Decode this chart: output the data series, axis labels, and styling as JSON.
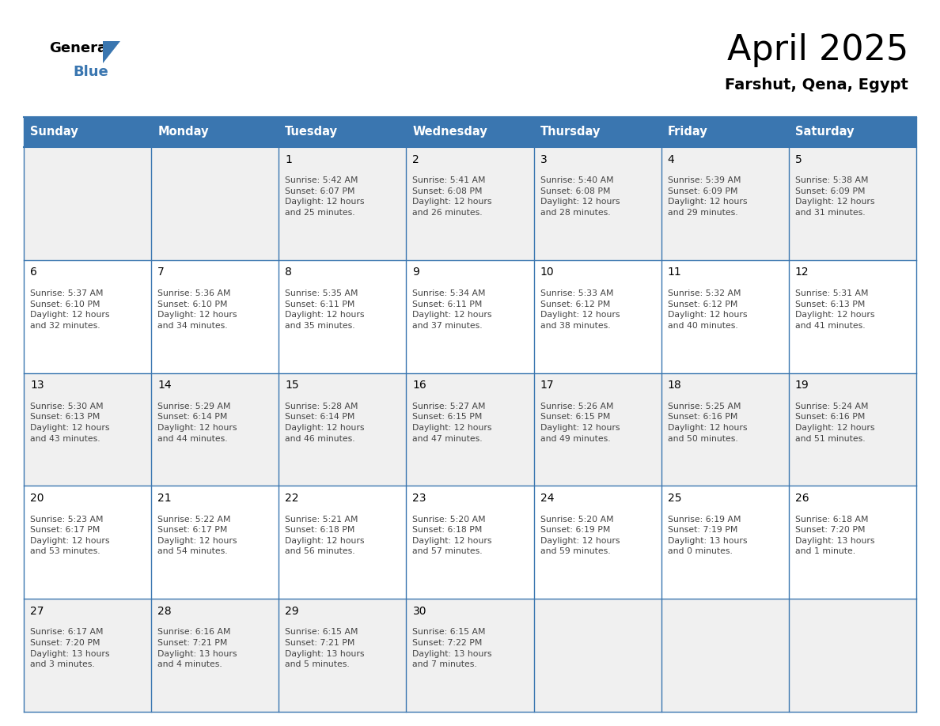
{
  "title": "April 2025",
  "subtitle": "Farshut, Qena, Egypt",
  "header_bg_color": "#3a76b0",
  "header_text_color": "#ffffff",
  "cell_bg_odd": "#f0f0f0",
  "cell_bg_even": "#ffffff",
  "day_headers": [
    "Sunday",
    "Monday",
    "Tuesday",
    "Wednesday",
    "Thursday",
    "Friday",
    "Saturday"
  ],
  "calendar_data": [
    [
      {
        "day": null,
        "text": ""
      },
      {
        "day": null,
        "text": ""
      },
      {
        "day": 1,
        "text": "Sunrise: 5:42 AM\nSunset: 6:07 PM\nDaylight: 12 hours\nand 25 minutes."
      },
      {
        "day": 2,
        "text": "Sunrise: 5:41 AM\nSunset: 6:08 PM\nDaylight: 12 hours\nand 26 minutes."
      },
      {
        "day": 3,
        "text": "Sunrise: 5:40 AM\nSunset: 6:08 PM\nDaylight: 12 hours\nand 28 minutes."
      },
      {
        "day": 4,
        "text": "Sunrise: 5:39 AM\nSunset: 6:09 PM\nDaylight: 12 hours\nand 29 minutes."
      },
      {
        "day": 5,
        "text": "Sunrise: 5:38 AM\nSunset: 6:09 PM\nDaylight: 12 hours\nand 31 minutes."
      }
    ],
    [
      {
        "day": 6,
        "text": "Sunrise: 5:37 AM\nSunset: 6:10 PM\nDaylight: 12 hours\nand 32 minutes."
      },
      {
        "day": 7,
        "text": "Sunrise: 5:36 AM\nSunset: 6:10 PM\nDaylight: 12 hours\nand 34 minutes."
      },
      {
        "day": 8,
        "text": "Sunrise: 5:35 AM\nSunset: 6:11 PM\nDaylight: 12 hours\nand 35 minutes."
      },
      {
        "day": 9,
        "text": "Sunrise: 5:34 AM\nSunset: 6:11 PM\nDaylight: 12 hours\nand 37 minutes."
      },
      {
        "day": 10,
        "text": "Sunrise: 5:33 AM\nSunset: 6:12 PM\nDaylight: 12 hours\nand 38 minutes."
      },
      {
        "day": 11,
        "text": "Sunrise: 5:32 AM\nSunset: 6:12 PM\nDaylight: 12 hours\nand 40 minutes."
      },
      {
        "day": 12,
        "text": "Sunrise: 5:31 AM\nSunset: 6:13 PM\nDaylight: 12 hours\nand 41 minutes."
      }
    ],
    [
      {
        "day": 13,
        "text": "Sunrise: 5:30 AM\nSunset: 6:13 PM\nDaylight: 12 hours\nand 43 minutes."
      },
      {
        "day": 14,
        "text": "Sunrise: 5:29 AM\nSunset: 6:14 PM\nDaylight: 12 hours\nand 44 minutes."
      },
      {
        "day": 15,
        "text": "Sunrise: 5:28 AM\nSunset: 6:14 PM\nDaylight: 12 hours\nand 46 minutes."
      },
      {
        "day": 16,
        "text": "Sunrise: 5:27 AM\nSunset: 6:15 PM\nDaylight: 12 hours\nand 47 minutes."
      },
      {
        "day": 17,
        "text": "Sunrise: 5:26 AM\nSunset: 6:15 PM\nDaylight: 12 hours\nand 49 minutes."
      },
      {
        "day": 18,
        "text": "Sunrise: 5:25 AM\nSunset: 6:16 PM\nDaylight: 12 hours\nand 50 minutes."
      },
      {
        "day": 19,
        "text": "Sunrise: 5:24 AM\nSunset: 6:16 PM\nDaylight: 12 hours\nand 51 minutes."
      }
    ],
    [
      {
        "day": 20,
        "text": "Sunrise: 5:23 AM\nSunset: 6:17 PM\nDaylight: 12 hours\nand 53 minutes."
      },
      {
        "day": 21,
        "text": "Sunrise: 5:22 AM\nSunset: 6:17 PM\nDaylight: 12 hours\nand 54 minutes."
      },
      {
        "day": 22,
        "text": "Sunrise: 5:21 AM\nSunset: 6:18 PM\nDaylight: 12 hours\nand 56 minutes."
      },
      {
        "day": 23,
        "text": "Sunrise: 5:20 AM\nSunset: 6:18 PM\nDaylight: 12 hours\nand 57 minutes."
      },
      {
        "day": 24,
        "text": "Sunrise: 5:20 AM\nSunset: 6:19 PM\nDaylight: 12 hours\nand 59 minutes."
      },
      {
        "day": 25,
        "text": "Sunrise: 6:19 AM\nSunset: 7:19 PM\nDaylight: 13 hours\nand 0 minutes."
      },
      {
        "day": 26,
        "text": "Sunrise: 6:18 AM\nSunset: 7:20 PM\nDaylight: 13 hours\nand 1 minute."
      }
    ],
    [
      {
        "day": 27,
        "text": "Sunrise: 6:17 AM\nSunset: 7:20 PM\nDaylight: 13 hours\nand 3 minutes."
      },
      {
        "day": 28,
        "text": "Sunrise: 6:16 AM\nSunset: 7:21 PM\nDaylight: 13 hours\nand 4 minutes."
      },
      {
        "day": 29,
        "text": "Sunrise: 6:15 AM\nSunset: 7:21 PM\nDaylight: 13 hours\nand 5 minutes."
      },
      {
        "day": 30,
        "text": "Sunrise: 6:15 AM\nSunset: 7:22 PM\nDaylight: 13 hours\nand 7 minutes."
      },
      {
        "day": null,
        "text": ""
      },
      {
        "day": null,
        "text": ""
      },
      {
        "day": null,
        "text": ""
      }
    ]
  ],
  "logo_triangle_color": "#3a76b0",
  "title_fontsize": 32,
  "subtitle_fontsize": 14,
  "header_fontsize": 10.5,
  "day_num_fontsize": 10,
  "cell_text_fontsize": 7.8,
  "border_color": "#3a76b0",
  "line_color": "#3a76b0"
}
